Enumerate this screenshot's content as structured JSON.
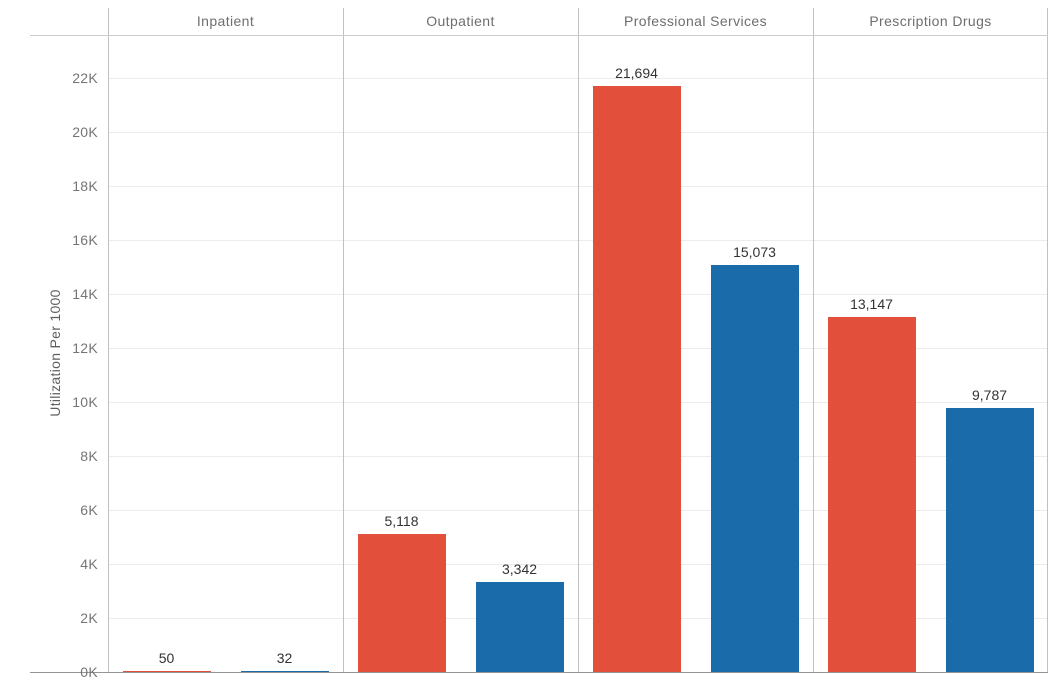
{
  "chart_data": {
    "type": "bar",
    "title": "",
    "xlabel": "",
    "ylabel": "Utilization Per 1000",
    "categories": [
      "Inpatient",
      "Outpatient",
      "Professional Services",
      "Prescription Drugs"
    ],
    "series": [
      {
        "name": "red",
        "color": "#e2503c",
        "values": [
          50,
          5118,
          21694,
          13147
        ],
        "value_labels": [
          "50",
          "5,118",
          "21,694",
          "13,147"
        ]
      },
      {
        "name": "blue",
        "color": "#1a6ba9",
        "values": [
          32,
          3342,
          15073,
          9787
        ],
        "value_labels": [
          "32",
          "3,342",
          "15,073",
          "9,787"
        ]
      }
    ],
    "y_axis": {
      "tick_values": [
        0,
        2000,
        4000,
        6000,
        8000,
        10000,
        12000,
        14000,
        16000,
        18000,
        20000,
        22000
      ],
      "tick_labels": [
        "0K",
        "2K",
        "4K",
        "6K",
        "8K",
        "10K",
        "12K",
        "14K",
        "16K",
        "18K",
        "20K",
        "22K"
      ],
      "range": [
        0,
        23600
      ]
    },
    "grid": true,
    "legend": "none",
    "colors": {
      "grid_line": "#ececec",
      "panel_divider": "#c1c1c1",
      "header_border": "#cccccc",
      "axis_line": "#959595",
      "tick_text": "#757575",
      "header_text": "#6e6e6e",
      "data_label_text": "#333333",
      "background": "#ffffff"
    }
  }
}
